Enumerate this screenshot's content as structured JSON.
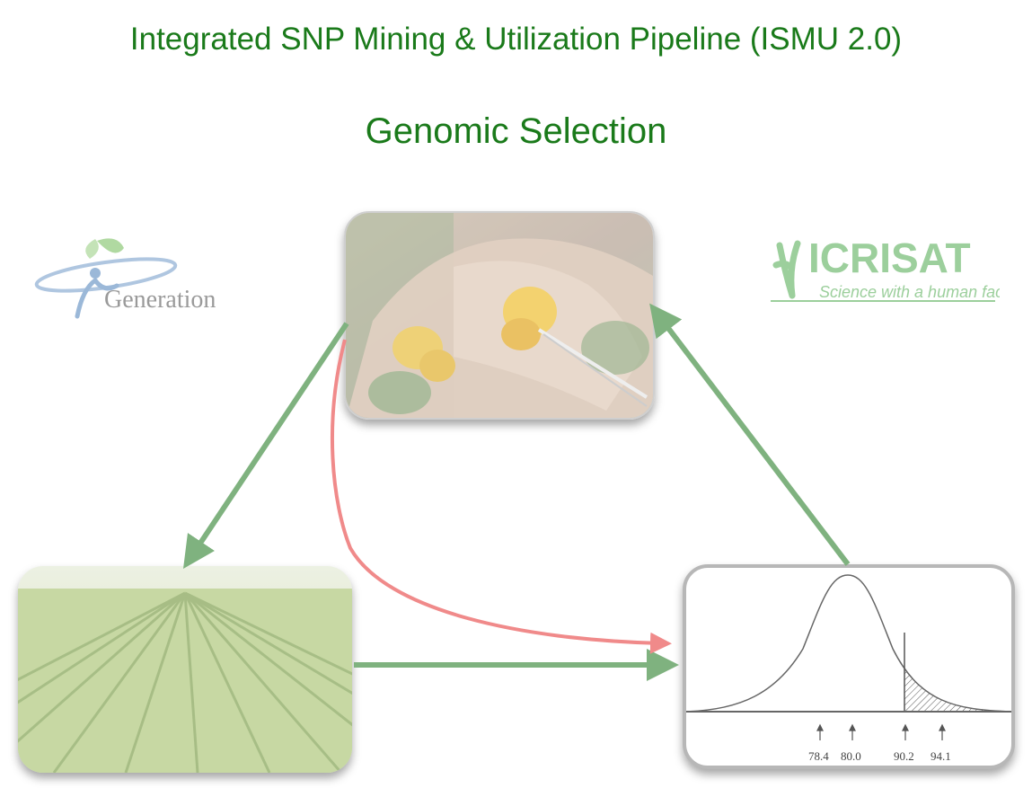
{
  "header": {
    "title": "Integrated SNP Mining & Utilization Pipeline (ISMU 2.0)",
    "subtitle": "Genomic Selection"
  },
  "logos": {
    "generation": {
      "text": "Generation"
    },
    "icrisat": {
      "name": "ICRISAT",
      "tagline": "Science with a human face"
    }
  },
  "selection_curve": {
    "tick_labels": [
      "78.4",
      "80.0",
      "90.2",
      "94.1"
    ]
  },
  "colors": {
    "title": "#1a7a1a",
    "cycle_arrow": "#7fb27f",
    "shortcut_arrow": "#f08a8a"
  }
}
